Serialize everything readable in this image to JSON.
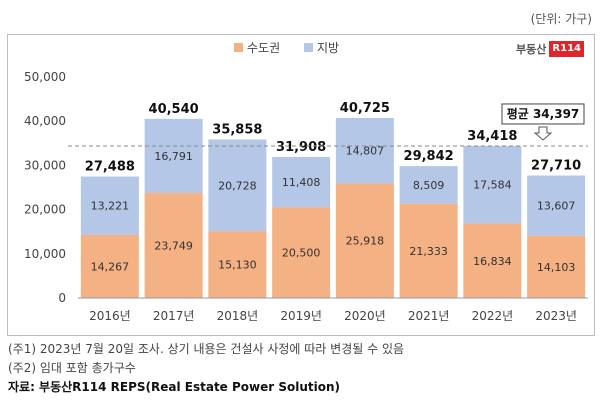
{
  "unit_text": "(단위: 가구)",
  "logo": {
    "text": "부동산",
    "badge": "R114"
  },
  "chart_data": {
    "type": "bar",
    "stacked": true,
    "categories": [
      "2016년",
      "2017년",
      "2018년",
      "2019년",
      "2020년",
      "2021년",
      "2022년",
      "2023년"
    ],
    "series": [
      {
        "name": "수도권",
        "color": "#f4b183",
        "values": [
          14267,
          23749,
          15130,
          20500,
          25918,
          21333,
          16834,
          14103
        ]
      },
      {
        "name": "지방",
        "color": "#b4c7e7",
        "values": [
          13221,
          16791,
          20728,
          11408,
          14807,
          8509,
          17584,
          13607
        ]
      }
    ],
    "totals": [
      27488,
      40540,
      35858,
      31908,
      40725,
      29842,
      34418,
      27710
    ],
    "totals_labels": [
      "27,488",
      "40,540",
      "35,858",
      "31,908",
      "40,725",
      "29,842",
      "34,418",
      "27,710"
    ],
    "series_labels": [
      [
        "14,267",
        "23,749",
        "15,130",
        "20,500",
        "25,918",
        "21,333",
        "16,834",
        "14,103"
      ],
      [
        "13,221",
        "16,791",
        "20,728",
        "11,408",
        "14,807",
        "8,509",
        "17,584",
        "13,607"
      ]
    ],
    "yticks": [
      0,
      10000,
      20000,
      30000,
      40000,
      50000
    ],
    "ytick_labels": [
      "0",
      "10,000",
      "20,000",
      "30,000",
      "40,000",
      "50,000"
    ],
    "ylim": [
      0,
      50000
    ],
    "average": {
      "value": 34397,
      "label": "평균 34,397",
      "line_style": "dashed"
    },
    "legend_position": "top-center"
  },
  "notes": [
    "(주1) 2023년 7월 20일 조사. 상기 내용은 건설사 사정에 따라 변경될 수 있음",
    "(주2) 임대 포함 총가구수"
  ],
  "source": "자료: 부동산R114 REPS(Real Estate Power Solution)"
}
